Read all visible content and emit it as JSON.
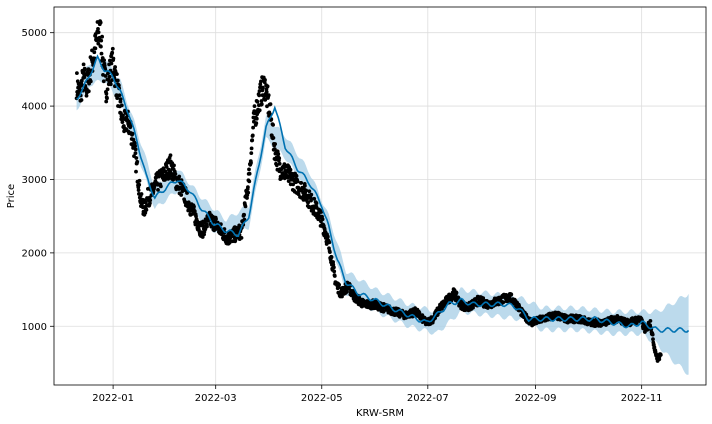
{
  "chart_data": {
    "type": "line",
    "title": "",
    "xlabel": "KRW-SRM",
    "ylabel": "Price",
    "grid": true,
    "legend": "none",
    "xlim": [
      "2021-11-28",
      "2022-12-08"
    ],
    "ylim": [
      200,
      5350
    ],
    "x_ticks": [
      {
        "date": "2022-01-01",
        "label": "2022-01"
      },
      {
        "date": "2022-03-01",
        "label": "2022-03"
      },
      {
        "date": "2022-05-01",
        "label": "2022-05"
      },
      {
        "date": "2022-07-01",
        "label": "2022-07"
      },
      {
        "date": "2022-09-01",
        "label": "2022-09"
      },
      {
        "date": "2022-11-01",
        "label": "2022-11"
      }
    ],
    "y_ticks": [
      1000,
      2000,
      3000,
      4000,
      5000
    ],
    "colors": {
      "observed": "#000000",
      "forecast": "#0072B2",
      "uncertainty": "#A6CDE6",
      "grid": "#dddddd"
    },
    "series": [
      {
        "role": "observed",
        "kind": "scatter",
        "x": [
          "2021-12-11",
          "2021-12-13",
          "2021-12-15",
          "2021-12-17",
          "2021-12-19",
          "2021-12-21",
          "2021-12-23",
          "2021-12-25",
          "2021-12-26",
          "2021-12-28",
          "2021-12-30",
          "2022-01-01",
          "2022-01-03",
          "2022-01-05",
          "2022-01-07",
          "2022-01-09",
          "2022-01-11",
          "2022-01-13",
          "2022-01-15",
          "2022-01-17",
          "2022-01-19",
          "2022-01-21",
          "2022-01-23",
          "2022-01-26",
          "2022-01-30",
          "2022-02-03",
          "2022-02-06",
          "2022-02-09",
          "2022-02-12",
          "2022-02-15",
          "2022-02-18",
          "2022-02-21",
          "2022-02-25",
          "2022-03-01",
          "2022-03-04",
          "2022-03-08",
          "2022-03-12",
          "2022-03-16",
          "2022-03-20",
          "2022-03-23",
          "2022-03-26",
          "2022-03-29",
          "2022-04-01",
          "2022-04-04",
          "2022-04-07",
          "2022-04-10",
          "2022-04-14",
          "2022-04-18",
          "2022-04-22",
          "2022-04-26",
          "2022-04-30",
          "2022-05-03",
          "2022-05-06",
          "2022-05-09",
          "2022-05-12",
          "2022-05-16",
          "2022-05-20",
          "2022-05-25",
          "2022-05-31",
          "2022-06-06",
          "2022-06-12",
          "2022-06-18",
          "2022-06-24",
          "2022-06-30",
          "2022-07-04",
          "2022-07-08",
          "2022-07-12",
          "2022-07-16",
          "2022-07-20",
          "2022-07-24",
          "2022-07-30",
          "2022-08-05",
          "2022-08-11",
          "2022-08-17",
          "2022-08-21",
          "2022-08-25",
          "2022-08-30",
          "2022-09-05",
          "2022-09-12",
          "2022-09-19",
          "2022-09-26",
          "2022-10-03",
          "2022-10-10",
          "2022-10-17",
          "2022-10-24",
          "2022-10-31",
          "2022-11-03",
          "2022-11-06",
          "2022-11-08",
          "2022-11-10",
          "2022-11-12"
        ],
        "y": [
          4300,
          4150,
          4400,
          4250,
          4500,
          4700,
          4950,
          5000,
          4600,
          4250,
          4450,
          4600,
          4300,
          4000,
          3750,
          3800,
          3700,
          3450,
          3100,
          2700,
          2600,
          2750,
          2800,
          2950,
          3050,
          3200,
          3000,
          2900,
          2750,
          2600,
          2450,
          2300,
          2450,
          2400,
          2300,
          2200,
          2250,
          2300,
          3000,
          3800,
          4100,
          4300,
          3950,
          3400,
          3150,
          3100,
          3000,
          2900,
          2800,
          2650,
          2500,
          2300,
          2000,
          1600,
          1450,
          1550,
          1400,
          1300,
          1300,
          1250,
          1200,
          1150,
          1200,
          1050,
          1100,
          1250,
          1350,
          1450,
          1300,
          1250,
          1350,
          1300,
          1350,
          1400,
          1300,
          1150,
          1050,
          1100,
          1150,
          1100,
          1100,
          1050,
          1050,
          1100,
          1050,
          1100,
          950,
          1050,
          750,
          550,
          600
        ]
      },
      {
        "role": "forecast",
        "kind": "line",
        "x": [
          "2021-12-11",
          "2021-12-15",
          "2021-12-19",
          "2021-12-23",
          "2021-12-27",
          "2022-01-01",
          "2022-01-05",
          "2022-01-10",
          "2022-01-15",
          "2022-01-20",
          "2022-01-25",
          "2022-02-01",
          "2022-02-07",
          "2022-02-14",
          "2022-02-21",
          "2022-02-28",
          "2022-03-07",
          "2022-03-14",
          "2022-03-20",
          "2022-03-25",
          "2022-03-30",
          "2022-04-04",
          "2022-04-10",
          "2022-04-17",
          "2022-04-24",
          "2022-05-01",
          "2022-05-05",
          "2022-05-10",
          "2022-05-15",
          "2022-05-22",
          "2022-06-01",
          "2022-06-10",
          "2022-06-20",
          "2022-06-30",
          "2022-07-06",
          "2022-07-13",
          "2022-07-20",
          "2022-07-27",
          "2022-08-05",
          "2022-08-15",
          "2022-08-22",
          "2022-08-28",
          "2022-09-05",
          "2022-09-15",
          "2022-09-25",
          "2022-10-05",
          "2022-10-15",
          "2022-10-25",
          "2022-11-01",
          "2022-11-10",
          "2022-11-18",
          "2022-11-28"
        ],
        "y": [
          4100,
          4250,
          4450,
          4650,
          4500,
          4400,
          4200,
          3900,
          3500,
          3050,
          2750,
          2900,
          3000,
          2850,
          2600,
          2400,
          2300,
          2250,
          2500,
          3100,
          3700,
          4000,
          3450,
          3150,
          2950,
          2650,
          2350,
          1900,
          1600,
          1450,
          1350,
          1250,
          1150,
          1050,
          1150,
          1300,
          1350,
          1300,
          1300,
          1300,
          1250,
          1100,
          1100,
          1100,
          1100,
          1100,
          1050,
          1000,
          1050,
          950,
          950,
          950
        ]
      },
      {
        "role": "uncertainty",
        "kind": "band",
        "x": [
          "2021-12-11",
          "2021-12-19",
          "2021-12-27",
          "2022-01-05",
          "2022-01-15",
          "2022-01-25",
          "2022-02-07",
          "2022-02-21",
          "2022-03-07",
          "2022-03-20",
          "2022-03-30",
          "2022-04-10",
          "2022-04-24",
          "2022-05-05",
          "2022-05-15",
          "2022-06-01",
          "2022-06-20",
          "2022-07-06",
          "2022-07-20",
          "2022-08-05",
          "2022-08-22",
          "2022-09-05",
          "2022-09-25",
          "2022-10-15",
          "2022-11-01",
          "2022-11-10",
          "2022-11-18",
          "2022-11-28"
        ],
        "lower": [
          3950,
          4300,
          4350,
          4050,
          3350,
          2600,
          2850,
          2450,
          2150,
          2350,
          3550,
          3300,
          2800,
          2200,
          1450,
          1200,
          1000,
          900,
          1200,
          1150,
          1100,
          950,
          950,
          900,
          900,
          750,
          550,
          350
        ],
        "upper": [
          4300,
          4600,
          4650,
          4350,
          3650,
          2900,
          3150,
          2750,
          2450,
          2650,
          3850,
          3600,
          3100,
          2500,
          1750,
          1500,
          1300,
          1200,
          1500,
          1450,
          1400,
          1250,
          1250,
          1200,
          1200,
          1200,
          1300,
          1450
        ]
      }
    ]
  }
}
